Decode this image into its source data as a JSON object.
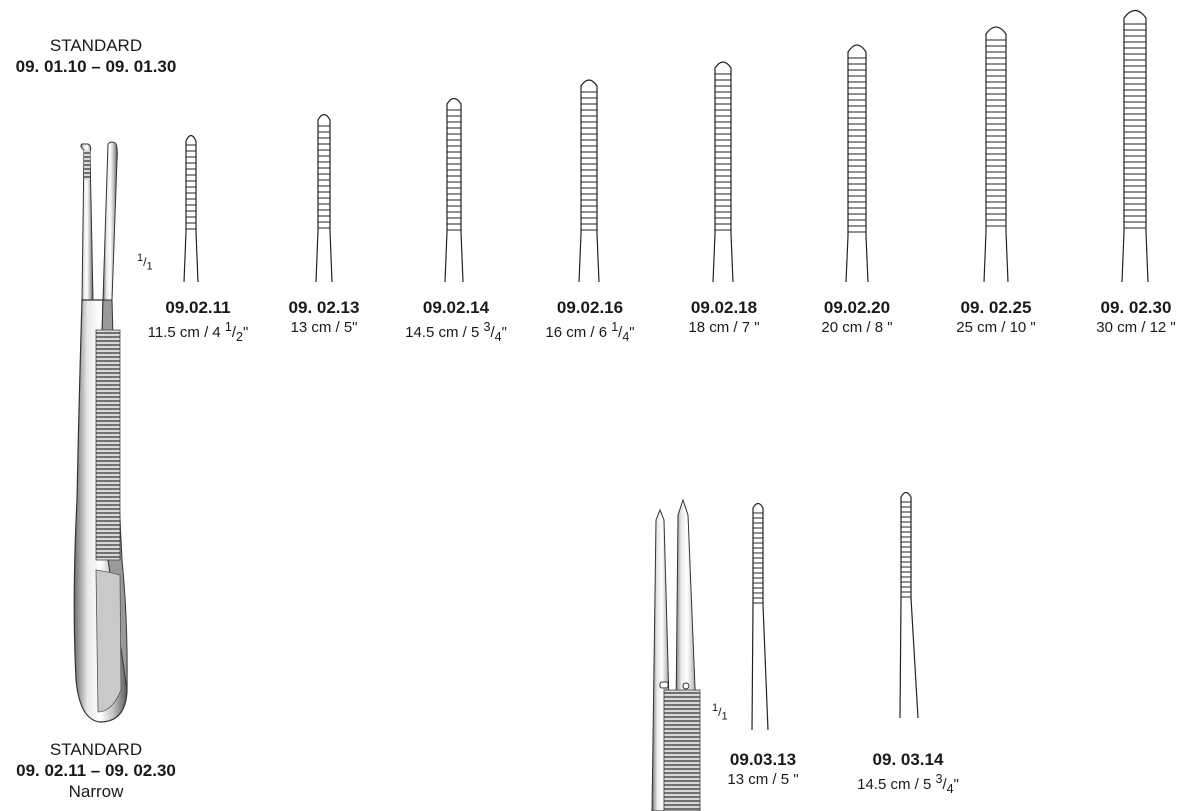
{
  "header_standard": {
    "label": "STANDARD",
    "range": "09. 01.10 – 09. 01.30"
  },
  "footer_standard": {
    "label": "STANDARD",
    "range": "09. 02.11 – 09. 02.30",
    "variant": "Narrow"
  },
  "scale_marks": [
    {
      "num": "1",
      "den": "1"
    },
    {
      "num": "1",
      "den": "1"
    }
  ],
  "standard_products": [
    {
      "code": "09.02.11",
      "size": "11.5 cm / 4 ",
      "frac_num": "1",
      "frac_den": "2",
      "suffix": "\""
    },
    {
      "code": "09. 02.13",
      "size": "13 cm / 5\"",
      "frac_num": "",
      "frac_den": "",
      "suffix": ""
    },
    {
      "code": "09.02.14",
      "size": "14.5 cm / 5 ",
      "frac_num": "3",
      "frac_den": "4",
      "suffix": "\""
    },
    {
      "code": "09.02.16",
      "size": "16 cm / 6 ",
      "frac_num": "1",
      "frac_den": "4",
      "suffix": "\""
    },
    {
      "code": "09.02.18",
      "size": "18 cm / 7 \"",
      "frac_num": "",
      "frac_den": "",
      "suffix": ""
    },
    {
      "code": "09.02.20",
      "size": "20 cm / 8 \"",
      "frac_num": "",
      "frac_den": "",
      "suffix": ""
    },
    {
      "code": "09. 02.25",
      "size": "25 cm / 10 \"",
      "frac_num": "",
      "frac_den": "",
      "suffix": ""
    },
    {
      "code": "09. 02.30",
      "size": "30 cm / 12 \"",
      "frac_num": "",
      "frac_den": "",
      "suffix": ""
    }
  ],
  "narrow_products": [
    {
      "code": "09.03.13",
      "size": "13 cm / 5 \"",
      "frac_num": "",
      "frac_den": "",
      "suffix": ""
    },
    {
      "code": "09. 03.14",
      "size": "14.5 cm / 5 ",
      "frac_num": "3",
      "frac_den": "4",
      "suffix": "\""
    }
  ]
}
